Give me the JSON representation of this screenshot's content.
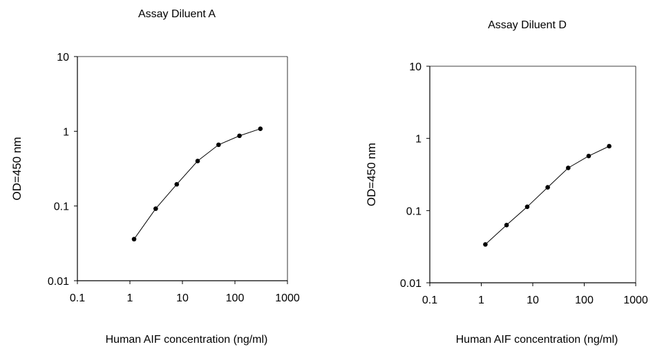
{
  "chart_data": [
    {
      "type": "line",
      "title": "Assay Diluent A",
      "xlabel": "Human AIF concentration (ng/ml)",
      "ylabel": "OD=450 nm",
      "x_scale": "log",
      "y_scale": "log",
      "xlim": [
        0.1,
        1000
      ],
      "ylim": [
        0.01,
        10
      ],
      "x_ticks": [
        "0.1",
        "1",
        "10",
        "100",
        "1000"
      ],
      "y_ticks": [
        "0.01",
        "0.1",
        "1",
        "10"
      ],
      "grid": false,
      "series": [
        {
          "x": [
            1.2,
            3.1,
            7.8,
            19.5,
            48.8,
            122,
            305
          ],
          "y": [
            0.036,
            0.092,
            0.195,
            0.4,
            0.66,
            0.87,
            1.08
          ]
        }
      ]
    },
    {
      "type": "line",
      "title": "Assay Diluent D",
      "xlabel": "Human AIF concentration (ng/ml)",
      "ylabel": "OD=450 nm",
      "x_scale": "log",
      "y_scale": "log",
      "xlim": [
        0.1,
        1000
      ],
      "ylim": [
        0.01,
        10
      ],
      "x_ticks": [
        "0.1",
        "1",
        "10",
        "100",
        "1000"
      ],
      "y_ticks": [
        "0.01",
        "0.1",
        "1",
        "10"
      ],
      "grid": false,
      "series": [
        {
          "x": [
            1.2,
            3.1,
            7.8,
            19.5,
            48.8,
            122,
            305
          ],
          "y": [
            0.034,
            0.063,
            0.113,
            0.21,
            0.39,
            0.57,
            0.78
          ]
        }
      ]
    }
  ]
}
